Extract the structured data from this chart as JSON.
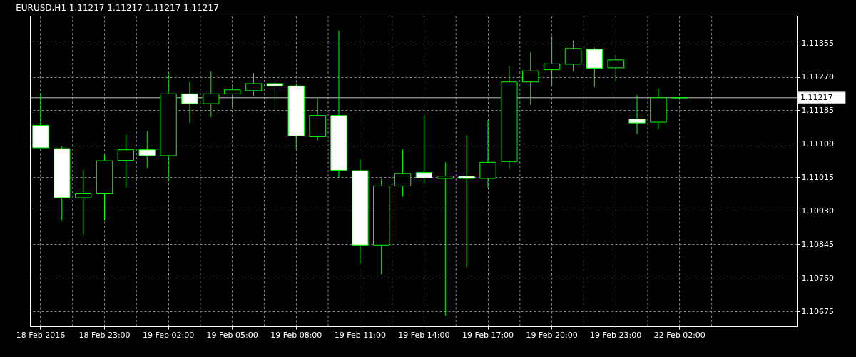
{
  "chart_data": {
    "type": "candlestick",
    "title": "EURUSD,H1  1.11217 1.11217 1.11217 1.11217",
    "categories": [
      "18 Feb 2016",
      null,
      null,
      "18 Feb 23:00",
      null,
      null,
      "19 Feb 02:00",
      null,
      null,
      "19 Feb 05:00",
      null,
      null,
      "19 Feb 08:00",
      null,
      null,
      "19 Feb 11:00",
      null,
      null,
      "19 Feb 14:00",
      null,
      null,
      "19 Feb 17:00",
      null,
      null,
      "19 Feb 20:00",
      null,
      null,
      "19 Feb 23:00",
      null,
      null,
      "22 Feb 02:00",
      null,
      null,
      null,
      null,
      null
    ],
    "ohlc": [
      [
        1.11147,
        1.11229,
        1.1109,
        1.1109
      ],
      [
        1.11088,
        1.11094,
        1.10906,
        1.10963
      ],
      [
        1.10963,
        1.11034,
        1.10868,
        1.10973
      ],
      [
        1.10973,
        1.11071,
        1.10906,
        1.11057
      ],
      [
        1.11058,
        1.11124,
        1.10988,
        1.11085
      ],
      [
        1.11085,
        1.11131,
        1.11039,
        1.1107
      ],
      [
        1.1107,
        1.11282,
        1.11006,
        1.11227
      ],
      [
        1.11227,
        1.11257,
        1.11153,
        1.11202
      ],
      [
        1.11202,
        1.11284,
        1.11168,
        1.11227
      ],
      [
        1.11227,
        1.11243,
        1.11194,
        1.11237
      ],
      [
        1.11235,
        1.11279,
        1.11221,
        1.11253
      ],
      [
        1.11253,
        1.1127,
        1.11189,
        1.11247
      ],
      [
        1.11247,
        1.11253,
        1.11088,
        1.1112
      ],
      [
        1.11118,
        1.11216,
        1.11108,
        1.11172
      ],
      [
        1.11172,
        1.11387,
        1.11014,
        1.11033
      ],
      [
        1.11032,
        1.11061,
        1.10794,
        1.10843
      ],
      [
        1.10843,
        1.11011,
        1.10768,
        1.10993
      ],
      [
        1.10993,
        1.11086,
        1.10966,
        1.11025
      ],
      [
        1.11027,
        1.11172,
        1.10998,
        1.11013
      ],
      [
        1.11012,
        1.11053,
        1.10664,
        1.11018
      ],
      [
        1.11018,
        1.11122,
        1.10786,
        1.11012
      ],
      [
        1.11012,
        1.1116,
        1.10988,
        1.11053
      ],
      [
        1.11055,
        1.11297,
        1.11038,
        1.11257
      ],
      [
        1.11257,
        1.11332,
        1.11199,
        1.11285
      ],
      [
        1.11288,
        1.11372,
        1.11248,
        1.11303
      ],
      [
        1.11302,
        1.11362,
        1.11284,
        1.11342
      ],
      [
        1.1134,
        1.11344,
        1.11244,
        1.11292
      ],
      [
        1.11293,
        1.11326,
        1.11258,
        1.11313
      ],
      [
        1.11163,
        1.11224,
        1.11124,
        1.11153
      ],
      [
        1.11155,
        1.11241,
        1.11137,
        1.11217
      ],
      [
        1.11217,
        1.11217,
        1.11217,
        1.11217
      ],
      null,
      null,
      null,
      null,
      null
    ],
    "color": "#00ff00",
    "ylim": [
      1.10637,
      1.11425
    ],
    "yticks": [
      1.10675,
      {
        "value": 1.1076,
        "label": "1.10760"
      },
      1.10845,
      {
        "value": 1.1093,
        "label": "1.10930"
      },
      1.11015,
      {
        "value": 1.111,
        "label": "1.11100"
      },
      1.11185,
      {
        "value": 1.1127,
        "label": "1.11270"
      },
      1.11355
    ],
    "ref_lines": [
      {
        "axis": "y",
        "value": 1.11217,
        "label": "1.11217",
        "color": "#c0c0c0"
      }
    ],
    "grid": true
  }
}
